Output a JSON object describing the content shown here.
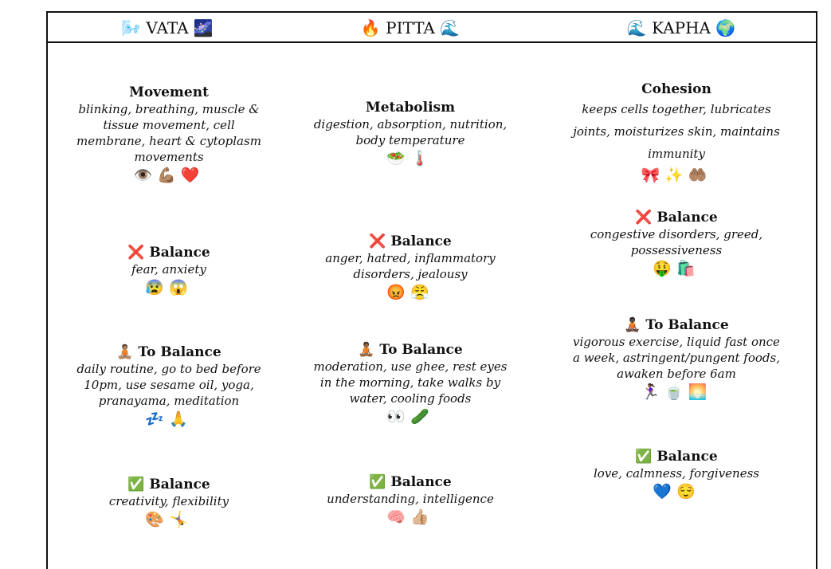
{
  "header": {
    "vata": "🌬️ VATA 🌌",
    "pitta": "🔥 PITTA 🌊",
    "kapha": "🌊 KAPHA 🌍"
  },
  "vata": {
    "function": {
      "title": "Movement",
      "desc": "blinking, breathing, muscle & tissue movement, cell membrane, heart & cytoplasm movements",
      "emoji": "👁️💪🏽❤️"
    },
    "imbalance": {
      "title": "❌ Balance",
      "desc": "fear, anxiety",
      "emoji": "😰😱"
    },
    "to_balance": {
      "title": "🧘🏽 To Balance",
      "desc": "daily routine, go to bed before 10pm, use sesame oil, yoga, pranayama, meditation",
      "emoji": "💤🙏"
    },
    "balance": {
      "title": "✅ Balance",
      "desc": "creativity, flexibility",
      "emoji": "🎨🤸"
    }
  },
  "pitta": {
    "function": {
      "title": "Metabolism",
      "desc": "digestion, absorption, nutrition, body temperature",
      "emoji": "🥗🌡️"
    },
    "imbalance": {
      "title": "❌ Balance",
      "desc": "anger, hatred, inflammatory disorders, jealousy",
      "emoji": "😡😤"
    },
    "to_balance": {
      "title": "🧘🏾 To Balance",
      "desc": "moderation, use ghee, rest eyes in the morning, take walks by water, cooling foods",
      "emoji": "👀🥒"
    },
    "balance": {
      "title": "✅ Balance",
      "desc": "understanding, intelligence",
      "emoji": "🧠👍🏼"
    }
  },
  "kapha": {
    "function": {
      "title": "Cohesion",
      "desc": "keeps cells together, lubricates joints, moisturizes skin, maintains immunity",
      "emoji": "🎀✨🤲🏽"
    },
    "imbalance": {
      "title": "❌ Balance",
      "desc": "congestive disorders, greed, possessiveness",
      "emoji": "🤑🛍️"
    },
    "to_balance": {
      "title": "🧘🏿 To Balance",
      "desc": "vigorous exercise, liquid fast once a week, astringent/pungent foods, awaken before 6am",
      "emoji": "🏃🏾‍♀️🍵🌅"
    },
    "balance": {
      "title": "✅ Balance",
      "desc": "love, calmness, forgiveness",
      "emoji": "💙😌"
    }
  }
}
